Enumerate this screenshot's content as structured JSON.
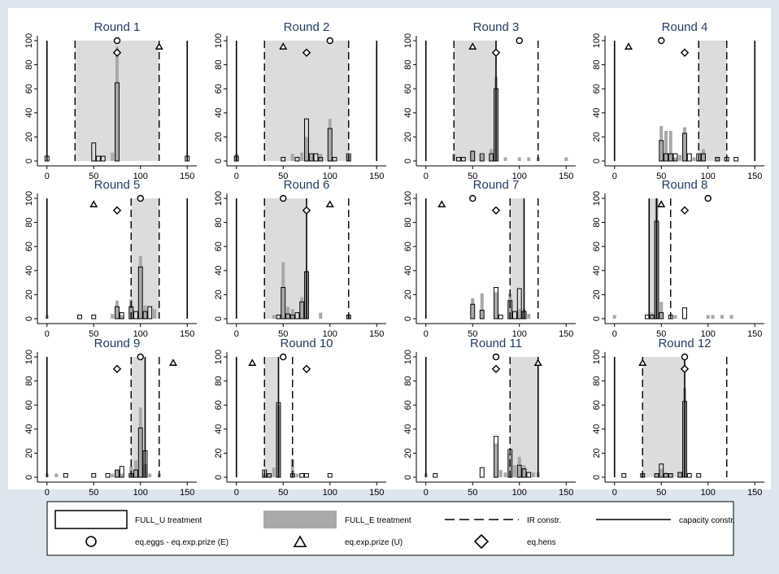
{
  "chart_data": {
    "type": "bar",
    "xlim": [
      -5,
      155
    ],
    "ylim": [
      0,
      100
    ],
    "xticks": [
      0,
      50,
      100,
      150
    ],
    "yticks": [
      0,
      20,
      40,
      60,
      80,
      100
    ],
    "grid": false,
    "legend_position": "bottom",
    "legend": [
      {
        "key": "full_u",
        "label": "FULL_U treatment"
      },
      {
        "key": "full_e",
        "label": "FULL_E treatment"
      },
      {
        "key": "ir",
        "label": "IR constr."
      },
      {
        "key": "capacity",
        "label": "capacity constr."
      },
      {
        "key": "circle",
        "label": "eq.eggs - eq.exp.prize (E)"
      },
      {
        "key": "triangle",
        "label": "eq.exp.prize (U)"
      },
      {
        "key": "diamond",
        "label": "eq.hens"
      }
    ],
    "colors": {
      "page_bg": "#dde6ee",
      "title": "#1f3d63",
      "e_bar": "#a9a9a9",
      "shade": "#dcdcdc"
    },
    "panels": [
      {
        "title": "Round 1",
        "shade": [
          30,
          120
        ],
        "ir": [
          30,
          120
        ],
        "cap": [
          0,
          150
        ],
        "circle": [
          75,
          100
        ],
        "triangle": [
          120,
          95
        ],
        "diamond": [
          75,
          90
        ],
        "u": [
          [
            0,
            4
          ],
          [
            50,
            15
          ],
          [
            55,
            4
          ],
          [
            60,
            4
          ],
          [
            75,
            65
          ],
          [
            150,
            4
          ]
        ],
        "e": [
          [
            70,
            7
          ],
          [
            75,
            95
          ]
        ]
      },
      {
        "title": "Round 2",
        "shade": [
          30,
          120
        ],
        "ir": [
          30,
          120
        ],
        "cap": [
          0,
          150
        ],
        "circle": [
          100,
          100
        ],
        "triangle": [
          50,
          95
        ],
        "diamond": [
          75,
          90
        ],
        "u": [
          [
            0,
            4
          ],
          [
            50,
            3
          ],
          [
            65,
            3
          ],
          [
            75,
            35
          ],
          [
            80,
            6
          ],
          [
            85,
            6
          ],
          [
            90,
            3
          ],
          [
            100,
            27
          ],
          [
            105,
            3
          ],
          [
            120,
            6
          ]
        ],
        "e": [
          [
            0,
            6
          ],
          [
            60,
            6
          ],
          [
            70,
            7
          ],
          [
            75,
            20
          ],
          [
            80,
            5
          ],
          [
            90,
            6
          ],
          [
            100,
            35
          ],
          [
            120,
            5
          ]
        ]
      },
      {
        "title": "Round 3",
        "shade": [
          30,
          75
        ],
        "ir": [
          30,
          120
        ],
        "cap": [
          0,
          75
        ],
        "circle": [
          100,
          100
        ],
        "triangle": [
          50,
          95
        ],
        "diamond": [
          75,
          90
        ],
        "u": [
          [
            35,
            3
          ],
          [
            40,
            3
          ],
          [
            50,
            8
          ],
          [
            60,
            6
          ],
          [
            70,
            6
          ],
          [
            75,
            60
          ]
        ],
        "e": [
          [
            30,
            6
          ],
          [
            50,
            9
          ],
          [
            60,
            5
          ],
          [
            70,
            10
          ],
          [
            75,
            70
          ],
          [
            85,
            3
          ],
          [
            100,
            3
          ],
          [
            110,
            3
          ],
          [
            120,
            3
          ],
          [
            150,
            3
          ]
        ]
      },
      {
        "title": "Round 4",
        "shade": [
          90,
          120
        ],
        "ir": [
          90,
          120
        ],
        "cap": [
          0,
          150
        ],
        "circle": [
          50,
          100
        ],
        "triangle": [
          15,
          95
        ],
        "diamond": [
          75,
          90
        ],
        "u": [
          [
            50,
            17
          ],
          [
            55,
            6
          ],
          [
            60,
            6
          ],
          [
            65,
            6
          ],
          [
            75,
            23
          ],
          [
            80,
            6
          ],
          [
            90,
            6
          ],
          [
            95,
            6
          ],
          [
            110,
            3
          ],
          [
            120,
            3
          ],
          [
            130,
            3
          ]
        ],
        "e": [
          [
            50,
            29
          ],
          [
            55,
            25
          ],
          [
            60,
            25
          ],
          [
            65,
            3
          ],
          [
            70,
            5
          ],
          [
            75,
            28
          ],
          [
            85,
            3
          ],
          [
            95,
            10
          ],
          [
            110,
            3
          ]
        ]
      },
      {
        "title": "Round 5",
        "shade": [
          90,
          120
        ],
        "ir": [
          90,
          120
        ],
        "cap": [
          0,
          150
        ],
        "circle": [
          100,
          100
        ],
        "triangle": [
          50,
          95
        ],
        "diamond": [
          75,
          90
        ],
        "u": [
          [
            35,
            3
          ],
          [
            50,
            3
          ],
          [
            75,
            10
          ],
          [
            80,
            5
          ],
          [
            90,
            10
          ],
          [
            95,
            6
          ],
          [
            100,
            43
          ],
          [
            105,
            6
          ],
          [
            110,
            10
          ]
        ],
        "e": [
          [
            0,
            3
          ],
          [
            70,
            4
          ],
          [
            75,
            15
          ],
          [
            80,
            3
          ],
          [
            90,
            16
          ],
          [
            100,
            52
          ],
          [
            105,
            11
          ],
          [
            115,
            8
          ]
        ]
      },
      {
        "title": "Round 6",
        "shade": [
          30,
          75
        ],
        "ir": [
          30,
          120
        ],
        "cap": [
          0,
          75
        ],
        "circle": [
          50,
          100
        ],
        "triangle": [
          100,
          95
        ],
        "diamond": [
          75,
          90
        ],
        "u": [
          [
            45,
            3
          ],
          [
            50,
            26
          ],
          [
            55,
            4
          ],
          [
            60,
            3
          ],
          [
            65,
            5
          ],
          [
            70,
            14
          ],
          [
            75,
            39
          ],
          [
            120,
            3
          ]
        ],
        "e": [
          [
            40,
            3
          ],
          [
            50,
            47
          ],
          [
            55,
            10
          ],
          [
            60,
            8
          ],
          [
            70,
            18
          ],
          [
            75,
            40
          ],
          [
            90,
            5
          ],
          [
            120,
            3
          ]
        ]
      },
      {
        "title": "Round 7",
        "shade": [
          90,
          105
        ],
        "ir": [
          90,
          120
        ],
        "cap": [
          0,
          105
        ],
        "circle": [
          50,
          100
        ],
        "triangle": [
          17,
          95
        ],
        "diamond": [
          75,
          90
        ],
        "u": [
          [
            50,
            12
          ],
          [
            60,
            7
          ],
          [
            75,
            26
          ],
          [
            80,
            3
          ],
          [
            90,
            15
          ],
          [
            95,
            6
          ],
          [
            100,
            25
          ],
          [
            105,
            6
          ]
        ],
        "e": [
          [
            50,
            17
          ],
          [
            60,
            21
          ],
          [
            75,
            22
          ],
          [
            90,
            21
          ],
          [
            100,
            8
          ],
          [
            105,
            8
          ],
          [
            110,
            4
          ]
        ]
      },
      {
        "title": "Round 8",
        "shade": [
          37,
          45
        ],
        "ir": [
          37,
          60
        ],
        "cap": [
          37,
          45
        ],
        "circle": [
          100,
          100
        ],
        "triangle": [
          50,
          95
        ],
        "diamond": [
          75,
          90
        ],
        "u": [
          [
            35,
            3
          ],
          [
            40,
            3
          ],
          [
            45,
            81
          ],
          [
            50,
            5
          ],
          [
            60,
            3
          ],
          [
            75,
            9
          ]
        ],
        "e": [
          [
            0,
            3
          ],
          [
            40,
            5
          ],
          [
            45,
            100
          ],
          [
            50,
            14
          ],
          [
            65,
            3
          ],
          [
            100,
            3
          ],
          [
            105,
            3
          ],
          [
            115,
            3
          ],
          [
            125,
            3
          ]
        ]
      },
      {
        "title": "Round 9",
        "shade": [
          90,
          105
        ],
        "ir": [
          90,
          120
        ],
        "cap": [
          0,
          105
        ],
        "circle": [
          100,
          100
        ],
        "triangle": [
          135,
          95
        ],
        "diamond": [
          75,
          90
        ],
        "u": [
          [
            20,
            3
          ],
          [
            50,
            3
          ],
          [
            65,
            3
          ],
          [
            75,
            6
          ],
          [
            80,
            9
          ],
          [
            90,
            3
          ],
          [
            95,
            6
          ],
          [
            100,
            41
          ],
          [
            105,
            22
          ]
        ],
        "e": [
          [
            0,
            3
          ],
          [
            10,
            3
          ],
          [
            70,
            3
          ],
          [
            75,
            6
          ],
          [
            80,
            3
          ],
          [
            90,
            9
          ],
          [
            95,
            14
          ],
          [
            100,
            58
          ],
          [
            105,
            11
          ],
          [
            110,
            3
          ],
          [
            120,
            3
          ]
        ]
      },
      {
        "title": "Round 10",
        "shade": [
          30,
          45
        ],
        "ir": [
          30,
          60
        ],
        "cap": [
          0,
          45
        ],
        "circle": [
          50,
          100
        ],
        "triangle": [
          17,
          95
        ],
        "diamond": [
          75,
          90
        ],
        "u": [
          [
            30,
            6
          ],
          [
            35,
            3
          ],
          [
            45,
            62
          ],
          [
            60,
            3
          ],
          [
            70,
            3
          ],
          [
            75,
            3
          ],
          [
            100,
            3
          ]
        ],
        "e": [
          [
            30,
            3
          ],
          [
            35,
            3
          ],
          [
            40,
            8
          ],
          [
            45,
            60
          ],
          [
            60,
            15
          ],
          [
            65,
            3
          ]
        ]
      },
      {
        "title": "Round 11",
        "shade": [
          90,
          120
        ],
        "ir": [
          90,
          120
        ],
        "cap": [
          0,
          120
        ],
        "circle": [
          75,
          100
        ],
        "triangle": [
          120,
          95
        ],
        "diamond": [
          75,
          90
        ],
        "u": [
          [
            10,
            3
          ],
          [
            60,
            8
          ],
          [
            75,
            34
          ],
          [
            90,
            23
          ],
          [
            100,
            10
          ],
          [
            105,
            7
          ],
          [
            110,
            4
          ]
        ],
        "e": [
          [
            0,
            3
          ],
          [
            75,
            28
          ],
          [
            80,
            6
          ],
          [
            85,
            4
          ],
          [
            90,
            20
          ],
          [
            95,
            10
          ],
          [
            100,
            17
          ],
          [
            105,
            10
          ],
          [
            115,
            4
          ],
          [
            120,
            4
          ]
        ]
      },
      {
        "title": "Round 12",
        "shade": [
          30,
          75
        ],
        "ir": [
          30,
          120
        ],
        "cap": [
          0,
          75
        ],
        "circle": [
          75,
          100
        ],
        "triangle": [
          30,
          95
        ],
        "diamond": [
          75,
          90
        ],
        "u": [
          [
            10,
            3
          ],
          [
            30,
            3
          ],
          [
            45,
            3
          ],
          [
            50,
            11
          ],
          [
            55,
            3
          ],
          [
            60,
            3
          ],
          [
            70,
            4
          ],
          [
            75,
            63
          ],
          [
            80,
            3
          ],
          [
            90,
            3
          ]
        ],
        "e": [
          [
            30,
            3
          ],
          [
            45,
            3
          ],
          [
            50,
            7
          ],
          [
            55,
            4
          ],
          [
            60,
            3
          ],
          [
            70,
            4
          ],
          [
            75,
            74
          ]
        ]
      }
    ]
  }
}
